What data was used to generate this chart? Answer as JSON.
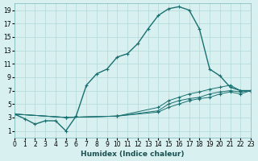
{
  "xlabel": "Humidex (Indice chaleur)",
  "ylabel": "",
  "bg_color": "#d8f0f0",
  "grid_color": "#b0d8d8",
  "line_color": "#1a7070",
  "xlim": [
    0,
    23
  ],
  "ylim": [
    0,
    20
  ],
  "xticks": [
    0,
    1,
    2,
    3,
    4,
    5,
    6,
    7,
    8,
    9,
    10,
    11,
    12,
    13,
    14,
    15,
    16,
    17,
    18,
    19,
    20,
    21,
    22,
    23
  ],
  "yticks": [
    1,
    3,
    5,
    7,
    9,
    11,
    13,
    15,
    17,
    19
  ],
  "series": [
    {
      "x": [
        0,
        1,
        2,
        3,
        4,
        5,
        6,
        7,
        8,
        9,
        10,
        11,
        12,
        13,
        14,
        15,
        16,
        17,
        18,
        19,
        20,
        21,
        22,
        23
      ],
      "y": [
        3.5,
        2.8,
        2.0,
        2.5,
        2.5,
        1.0,
        3.2,
        7.8,
        9.5,
        10.2,
        12.0,
        12.5,
        14.0,
        16.2,
        18.2,
        19.2,
        19.5,
        19.0,
        16.2,
        10.2,
        9.2,
        7.5,
        7.0,
        7.0
      ]
    },
    {
      "x": [
        0,
        5,
        10,
        14,
        15,
        16,
        17,
        18,
        19,
        20,
        21,
        22,
        23
      ],
      "y": [
        3.5,
        3.0,
        3.2,
        4.5,
        5.5,
        6.0,
        6.5,
        6.8,
        7.2,
        7.5,
        7.8,
        7.0,
        7.0
      ]
    },
    {
      "x": [
        0,
        5,
        10,
        14,
        15,
        16,
        17,
        18,
        19,
        20,
        21,
        22,
        23
      ],
      "y": [
        3.5,
        3.0,
        3.2,
        4.0,
        5.0,
        5.5,
        5.8,
        6.0,
        6.5,
        6.8,
        7.0,
        6.8,
        7.0
      ]
    },
    {
      "x": [
        0,
        5,
        10,
        14,
        15,
        16,
        17,
        18,
        19,
        20,
        21,
        22,
        23
      ],
      "y": [
        3.5,
        3.0,
        3.2,
        3.8,
        4.5,
        5.0,
        5.5,
        5.8,
        6.0,
        6.5,
        6.8,
        6.5,
        7.0
      ]
    }
  ]
}
